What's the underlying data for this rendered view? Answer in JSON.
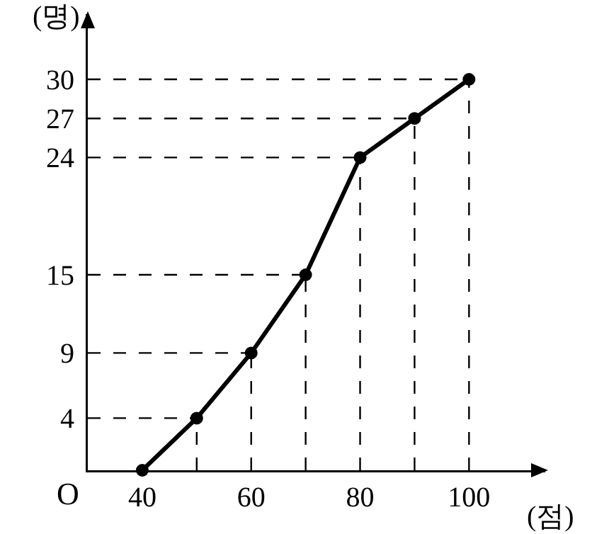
{
  "chart_data": {
    "type": "line",
    "xlabel": "(점)",
    "ylabel": "(명)",
    "annotations": [
      "O"
    ],
    "x": [
      40,
      50,
      60,
      70,
      80,
      90,
      100
    ],
    "values": [
      0,
      4,
      9,
      15,
      24,
      27,
      30
    ],
    "color": "#000000",
    "marker": "circle",
    "line_style": "solid",
    "ref_lines": [
      {
        "axis": "y",
        "value": 4,
        "line_style": "dashed"
      },
      {
        "axis": "y",
        "value": 9,
        "line_style": "dashed"
      },
      {
        "axis": "y",
        "value": 15,
        "line_style": "dashed"
      },
      {
        "axis": "y",
        "value": 24,
        "line_style": "dashed"
      },
      {
        "axis": "y",
        "value": 27,
        "line_style": "dashed"
      },
      {
        "axis": "y",
        "value": 30,
        "line_style": "dashed"
      },
      {
        "axis": "x",
        "value": 50,
        "line_style": "dashed"
      },
      {
        "axis": "x",
        "value": 60,
        "line_style": "dashed"
      },
      {
        "axis": "x",
        "value": 70,
        "line_style": "dashed"
      },
      {
        "axis": "x",
        "value": 80,
        "line_style": "dashed"
      },
      {
        "axis": "x",
        "value": 90,
        "line_style": "dashed"
      },
      {
        "axis": "x",
        "value": 100,
        "line_style": "dashed"
      }
    ],
    "xlim": [
      30,
      114
    ],
    "xticks": [
      40,
      60,
      80,
      100
    ],
    "ylim": [
      0,
      35
    ],
    "yticks": [
      4,
      9,
      15,
      24,
      27,
      30
    ]
  }
}
